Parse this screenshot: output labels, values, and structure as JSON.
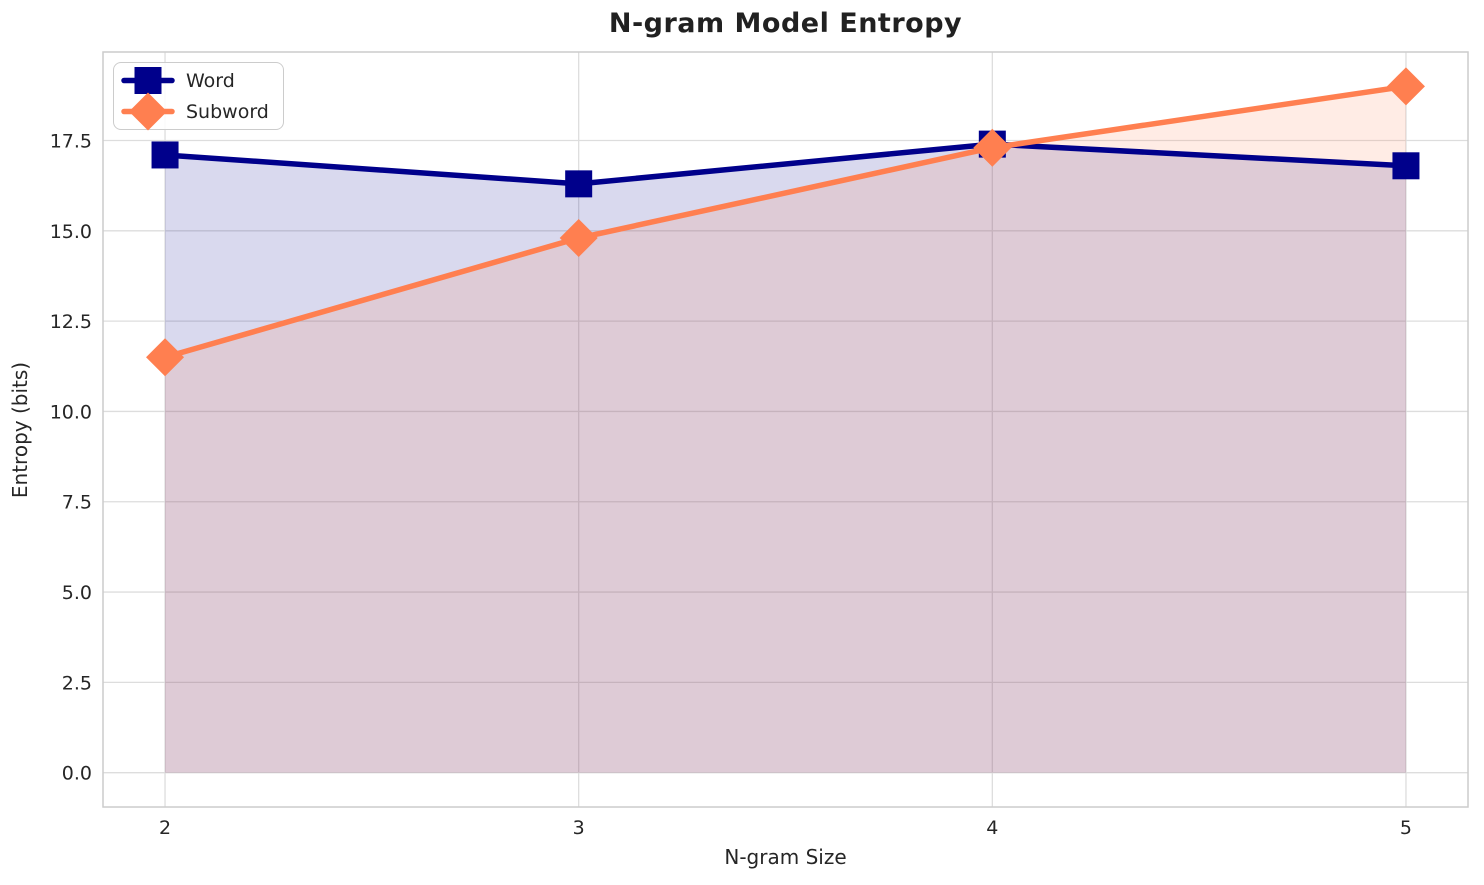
{
  "chart_data": {
    "type": "line",
    "title": "N-gram Model Entropy",
    "xlabel": "N-gram Size",
    "ylabel": "Entropy (bits)",
    "x": [
      2,
      3,
      4,
      5
    ],
    "series": [
      {
        "name": "Word",
        "values": [
          17.1,
          16.3,
          17.4,
          16.8
        ],
        "color": "#00008B",
        "marker": "square",
        "fill_to_zero": true
      },
      {
        "name": "Subword",
        "values": [
          11.5,
          14.8,
          17.3,
          19.0
        ],
        "color": "#FF7F50",
        "marker": "diamond",
        "fill_to_zero": true
      }
    ],
    "fill_alpha": 0.15,
    "xlim": [
      1.85,
      5.15
    ],
    "ylim": [
      -0.95,
      19.95
    ],
    "xticks": {
      "values": [
        2,
        3,
        4,
        5
      ],
      "labels": [
        "2",
        "3",
        "4",
        "5"
      ]
    },
    "yticks": {
      "values": [
        0,
        2.5,
        5,
        7.5,
        10,
        12.5,
        15,
        17.5
      ],
      "labels": [
        "0.0",
        "2.5",
        "5.0",
        "7.5",
        "10.0",
        "12.5",
        "15.0",
        "17.5"
      ]
    },
    "grid": true,
    "legend_position": "upper-left"
  },
  "style": {
    "background": "#FFFFFF",
    "grid_color": "#DDDDDD",
    "spine_color": "#CCCCCC",
    "tick_text_color": "#262626",
    "title_color": "#212121",
    "line_width": 5.5,
    "marker_square_size": 27,
    "marker_diamond_half_diag": 19
  }
}
